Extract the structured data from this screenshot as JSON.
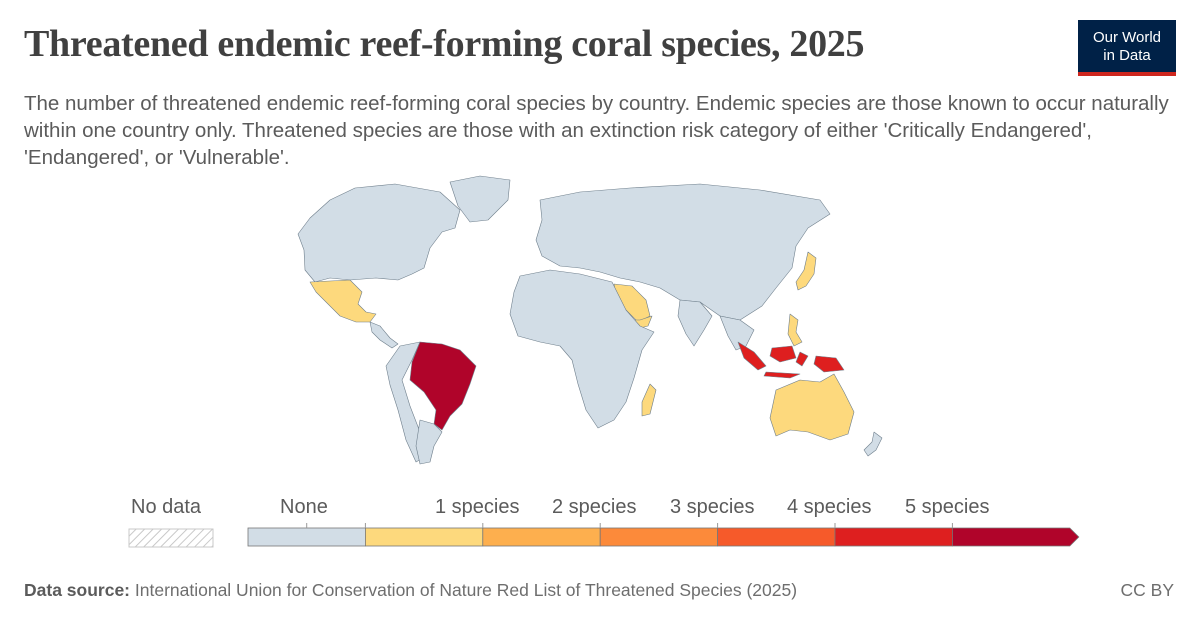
{
  "header": {
    "title": "Threatened endemic reef-forming coral species, 2025",
    "subtitle": "The number of threatened endemic reef-forming coral species by country. Endemic species are those known to occur naturally within one country only. Threatened species are those with an extinction risk category of either 'Critically Endangered', 'Endangered', or 'Vulnerable'.",
    "logo_line1": "Our World",
    "logo_line2": "in Data"
  },
  "legend": {
    "no_data_label": "No data",
    "bins": [
      {
        "label": "None",
        "color": "#d2dde6"
      },
      {
        "label": "1 species",
        "color": "#fdd97d"
      },
      {
        "label": "2 species",
        "color": "#fdaf4e"
      },
      {
        "label": "3 species",
        "color": "#fc8a3a"
      },
      {
        "label": "4 species",
        "color": "#f65a2a"
      },
      {
        "label": "5 species",
        "color": "#de1f1f"
      },
      {
        "label": "",
        "color": "#b0042a"
      }
    ]
  },
  "map_data": {
    "countries": [
      {
        "name": "Brazil",
        "value": 6,
        "color": "#b0042a"
      },
      {
        "name": "Indonesia",
        "value": 5,
        "color": "#de1f1f"
      },
      {
        "name": "Mexico",
        "value": 1,
        "color": "#fdd97d"
      },
      {
        "name": "Saudi Arabia",
        "value": 1,
        "color": "#fdd97d"
      },
      {
        "name": "Yemen",
        "value": 1,
        "color": "#fdd97d"
      },
      {
        "name": "Japan",
        "value": 1,
        "color": "#fdd97d"
      },
      {
        "name": "Philippines",
        "value": 1,
        "color": "#fdd97d"
      },
      {
        "name": "Australia",
        "value": 1,
        "color": "#fdd97d"
      },
      {
        "name": "Madagascar",
        "value": 1,
        "color": "#fdd97d"
      }
    ],
    "default_color": "#d2dde6",
    "border_color": "#6f7f8c"
  },
  "footer": {
    "source_label": "Data source:",
    "source_text": " International Union for Conservation of Nature Red List of Threatened Species (2025)",
    "license": "CC BY"
  }
}
